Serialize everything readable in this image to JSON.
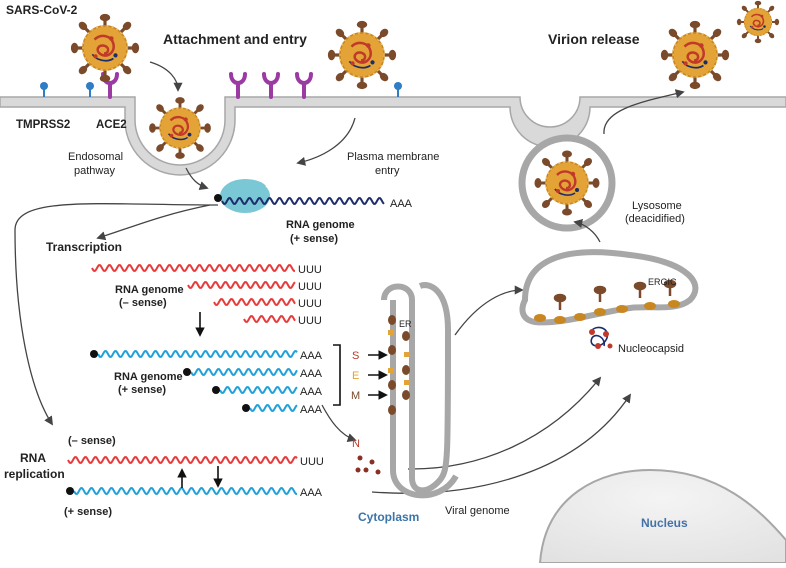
{
  "labels": {
    "sars_cov_2": "SARS-CoV-2",
    "attachment_entry": "Attachment and entry",
    "virion_release": "Virion release",
    "tmprss2": "TMPRSS2",
    "ace2": "ACE2",
    "endosomal_1": "Endosomal",
    "endosomal_2": "pathway",
    "plasma_1": "Plasma membrane",
    "plasma_2": "entry",
    "aaa_top": "AAA",
    "rna_genome_plus_1": "RNA genome",
    "rna_genome_plus_2": "(+ sense)",
    "transcription": "Transcription",
    "rna_genome_minus_1": "RNA genome",
    "rna_genome_minus_2": "(– sense)",
    "rna_genome_plus_b_1": "RNA genome",
    "rna_genome_plus_b_2": "(+ sense)",
    "uuu": "UUU",
    "aaa": "AAA",
    "s": "S",
    "e": "E",
    "m": "M",
    "n": "N",
    "er": "ER",
    "ergic": "ERGIC",
    "nucleocapsid": "Nucleocapsid",
    "lysosome_1": "Lysosome",
    "lysosome_2": "(deacidified)",
    "rna_replication_1": "RNA",
    "rna_replication_2": "replication",
    "minus_sense": "(– sense)",
    "plus_sense": "(+ sense)",
    "cytoplasm": "Cytoplasm",
    "viral_genome": "Viral genome",
    "nucleus": "Nucleus"
  },
  "colors": {
    "membrane_fill": "#d9d9d9",
    "membrane_stroke": "#a7a7a7",
    "minus_strand": "#e83a3a",
    "plus_strand": "#1fa0d8",
    "genome_navy": "#1d2c6b",
    "ribosome": "#7ac7d6",
    "receptor_purple": "#9b3aa3",
    "tmprss2_blue": "#2f7dc4",
    "virus_body": "#e3a336",
    "virus_spike": "#7a4a2b",
    "s_color": "#b93a2b",
    "e_color": "#e3a336",
    "m_color": "#7a4a2b",
    "cytoplasm_blue": "#3b74a8",
    "nucleus_fill": "#eeeeee",
    "nucleus_text": "#4472a8"
  }
}
